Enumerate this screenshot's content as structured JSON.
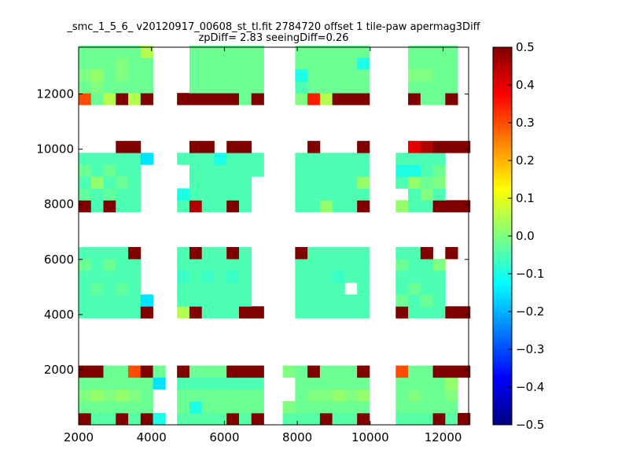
{
  "chart_data": {
    "type": "heatmap",
    "title": "_smc_1_5_6_ v20120917_00608_st_tl.fit 2784720 offset 1 tile-paw apermag3Diff",
    "subtitle": "zpDiff= 2.83 seeingDiff=0.26",
    "xlabel": "",
    "ylabel": "",
    "xlim": [
      2000,
      12700
    ],
    "ylim": [
      0,
      13700
    ],
    "x_ticks": [
      "2000",
      "4000",
      "6000",
      "8000",
      "10000",
      "12000"
    ],
    "y_ticks": [
      "2000",
      "4000",
      "6000",
      "8000",
      "10000",
      "12000"
    ],
    "colorbar": {
      "min": -0.5,
      "max": 0.5,
      "colormap": "jet",
      "ticks": [
        "0.5",
        "0.4",
        "0.3",
        "0.2",
        "0.1",
        "0.0",
        "−0.1",
        "−0.2",
        "−0.3",
        "−0.4",
        "−0.5"
      ]
    },
    "grid": false,
    "cell_width": 340,
    "cell_height": 430,
    "x_bins": [
      2000,
      2340,
      2680,
      3020,
      3360,
      3700,
      4040,
      4700,
      5040,
      5380,
      5720,
      6060,
      6400,
      6740,
      7600,
      7940,
      8280,
      8620,
      8960,
      9300,
      9640,
      10700,
      11040,
      11380,
      11720,
      12060,
      12400
    ],
    "y_bins": [
      0,
      430,
      860,
      1290,
      1720,
      2150,
      3870,
      4300,
      4730,
      5160,
      5590,
      6020,
      7720,
      8150,
      8580,
      9010,
      9440,
      9870,
      10300,
      11610,
      12040,
      12470,
      12900,
      13330
    ],
    "values": [
      [
        0.5,
        -0.04,
        -0.04,
        0.5,
        -0.04,
        0.5,
        -0.1,
        -0.04,
        -0.04,
        -0.04,
        -0.04,
        0.5,
        -0.04,
        0.5,
        -0.04,
        -0.04,
        -0.04,
        0.5,
        -0.04,
        -0.04,
        0.5,
        -0.04,
        -0.04,
        -0.04,
        0.5,
        -0.04,
        0.5
      ],
      [
        -0.02,
        -0.02,
        -0.02,
        -0.02,
        -0.02,
        -0.02,
        null,
        -0.02,
        -0.1,
        -0.02,
        -0.02,
        -0.02,
        -0.02,
        -0.02,
        0.0,
        -0.02,
        -0.02,
        -0.02,
        -0.02,
        -0.02,
        -0.02,
        -0.02,
        -0.02,
        -0.02,
        -0.02,
        -0.02,
        null
      ],
      [
        0.0,
        0.02,
        0.0,
        0.02,
        0.0,
        -0.02,
        null,
        -0.02,
        -0.02,
        -0.02,
        -0.02,
        -0.02,
        -0.02,
        -0.02,
        null,
        -0.02,
        0.0,
        0.0,
        0.02,
        0.0,
        0.02,
        -0.02,
        0.0,
        -0.02,
        -0.02,
        0.0,
        null
      ],
      [
        -0.02,
        -0.02,
        -0.02,
        -0.02,
        -0.02,
        -0.02,
        -0.15,
        -0.05,
        -0.05,
        -0.05,
        -0.05,
        -0.05,
        -0.05,
        -0.05,
        null,
        -0.02,
        -0.02,
        -0.02,
        -0.02,
        -0.02,
        -0.02,
        -0.02,
        -0.02,
        -0.02,
        -0.02,
        0.02,
        null
      ],
      [
        0.5,
        0.5,
        -0.02,
        -0.02,
        0.3,
        0.5,
        -0.02,
        0.5,
        -0.02,
        -0.02,
        -0.02,
        0.5,
        0.5,
        0.5,
        0.0,
        -0.02,
        0.5,
        -0.02,
        -0.02,
        -0.02,
        0.5,
        0.3,
        -0.02,
        -0.02,
        0.5,
        0.5,
        0.5
      ],
      [
        null,
        null,
        null,
        null,
        null,
        null,
        null,
        null,
        null,
        null,
        null,
        null,
        null,
        null,
        null,
        null,
        null,
        null,
        null,
        null,
        null,
        null,
        null,
        null,
        null,
        null,
        null
      ],
      [
        -0.05,
        -0.05,
        -0.05,
        -0.05,
        -0.05,
        0.5,
        null,
        0.05,
        0.5,
        -0.05,
        -0.05,
        -0.05,
        0.5,
        0.5,
        null,
        -0.05,
        -0.05,
        -0.05,
        -0.05,
        -0.05,
        -0.05,
        0.5,
        -0.05,
        -0.05,
        -0.05,
        0.5,
        0.5
      ],
      [
        -0.05,
        -0.05,
        -0.05,
        -0.05,
        -0.05,
        -0.15,
        null,
        -0.05,
        -0.05,
        -0.05,
        -0.05,
        -0.05,
        -0.05,
        null,
        null,
        -0.05,
        -0.05,
        -0.05,
        -0.05,
        -0.05,
        -0.05,
        -0.02,
        -0.05,
        -0.02,
        -0.05,
        null,
        null
      ],
      [
        -0.05,
        -0.03,
        -0.05,
        -0.03,
        -0.05,
        null,
        null,
        -0.05,
        -0.05,
        -0.05,
        -0.05,
        -0.05,
        -0.05,
        null,
        null,
        -0.05,
        -0.05,
        -0.05,
        -0.05,
        null,
        -0.05,
        -0.05,
        -0.02,
        -0.05,
        -0.05,
        null,
        null
      ],
      [
        -0.05,
        -0.05,
        -0.05,
        -0.05,
        -0.05,
        null,
        null,
        -0.07,
        -0.05,
        -0.07,
        -0.05,
        -0.07,
        -0.05,
        null,
        null,
        -0.05,
        -0.05,
        -0.05,
        -0.07,
        -0.05,
        -0.05,
        -0.05,
        -0.05,
        -0.05,
        -0.05,
        null,
        null
      ],
      [
        -0.02,
        -0.05,
        -0.02,
        -0.05,
        -0.05,
        null,
        null,
        -0.05,
        -0.05,
        -0.05,
        -0.05,
        -0.05,
        -0.05,
        null,
        null,
        -0.05,
        -0.05,
        -0.05,
        -0.05,
        -0.05,
        -0.05,
        -0.02,
        -0.05,
        -0.05,
        0.0,
        null,
        null
      ],
      [
        -0.05,
        -0.05,
        -0.05,
        -0.05,
        0.5,
        null,
        null,
        -0.05,
        0.5,
        -0.05,
        -0.05,
        0.5,
        -0.05,
        null,
        null,
        0.5,
        -0.05,
        -0.05,
        -0.05,
        -0.05,
        -0.05,
        -0.05,
        -0.05,
        0.5,
        null,
        0.5,
        null
      ],
      [
        0.5,
        -0.05,
        0.5,
        -0.05,
        -0.05,
        null,
        null,
        -0.05,
        0.45,
        -0.05,
        -0.05,
        0.5,
        -0.05,
        null,
        null,
        -0.05,
        -0.05,
        0.02,
        -0.05,
        -0.05,
        0.5,
        0.02,
        -0.05,
        -0.05,
        0.5,
        0.5,
        0.5
      ],
      [
        -0.03,
        -0.05,
        -0.03,
        -0.05,
        -0.05,
        null,
        null,
        -0.1,
        -0.05,
        -0.05,
        -0.05,
        -0.05,
        -0.05,
        null,
        null,
        -0.05,
        -0.05,
        -0.05,
        -0.05,
        -0.05,
        -0.05,
        null,
        -0.05,
        0.0,
        -0.05,
        null,
        null
      ],
      [
        -0.05,
        0.02,
        -0.05,
        -0.02,
        -0.05,
        null,
        null,
        null,
        -0.05,
        -0.05,
        -0.05,
        -0.05,
        -0.05,
        null,
        null,
        -0.05,
        -0.05,
        -0.05,
        -0.05,
        -0.05,
        0.02,
        -0.05,
        0.02,
        -0.02,
        0.0,
        null,
        null
      ],
      [
        -0.02,
        -0.05,
        -0.02,
        -0.05,
        -0.05,
        null,
        null,
        null,
        -0.05,
        -0.05,
        -0.05,
        -0.05,
        -0.05,
        -0.05,
        null,
        -0.05,
        -0.05,
        -0.05,
        -0.05,
        -0.05,
        -0.05,
        -0.1,
        -0.1,
        -0.05,
        -0.02,
        null,
        null
      ],
      [
        -0.05,
        -0.05,
        -0.05,
        -0.05,
        -0.05,
        -0.15,
        null,
        -0.05,
        -0.05,
        -0.05,
        -0.1,
        -0.05,
        -0.05,
        -0.05,
        null,
        -0.05,
        -0.05,
        -0.05,
        -0.05,
        -0.05,
        -0.05,
        -0.05,
        -0.05,
        -0.05,
        -0.05,
        null,
        null
      ],
      [
        null,
        null,
        null,
        0.5,
        0.5,
        null,
        null,
        null,
        0.5,
        0.5,
        null,
        0.5,
        0.5,
        null,
        null,
        null,
        0.5,
        null,
        null,
        null,
        0.5,
        null,
        0.4,
        0.45,
        0.5,
        0.5,
        0.5
      ],
      [
        null,
        null,
        null,
        null,
        null,
        null,
        null,
        null,
        null,
        null,
        null,
        null,
        null,
        null,
        null,
        null,
        null,
        null,
        null,
        null,
        null,
        null,
        null,
        null,
        null,
        null,
        null
      ],
      [
        0.3,
        -0.02,
        0.05,
        0.5,
        0.05,
        0.5,
        null,
        0.5,
        0.5,
        0.5,
        0.5,
        0.5,
        -0.02,
        0.5,
        null,
        0.0,
        0.35,
        0.05,
        0.5,
        0.5,
        0.5,
        null,
        0.5,
        -0.02,
        -0.02,
        0.5,
        null
      ],
      [
        -0.02,
        0.0,
        -0.02,
        -0.02,
        -0.02,
        -0.02,
        null,
        null,
        -0.02,
        -0.02,
        -0.02,
        -0.02,
        -0.02,
        -0.02,
        null,
        -0.05,
        -0.02,
        -0.02,
        -0.02,
        -0.02,
        -0.02,
        null,
        -0.02,
        -0.02,
        -0.02,
        -0.02,
        null
      ],
      [
        0.0,
        0.02,
        -0.02,
        0.0,
        -0.02,
        -0.02,
        null,
        null,
        -0.02,
        -0.02,
        -0.02,
        -0.02,
        -0.02,
        -0.02,
        null,
        -0.1,
        -0.02,
        -0.02,
        -0.02,
        -0.02,
        -0.02,
        null,
        0.0,
        0.0,
        -0.02,
        -0.02,
        null
      ],
      [
        -0.02,
        -0.02,
        -0.02,
        0.0,
        -0.02,
        -0.02,
        null,
        null,
        -0.02,
        -0.02,
        -0.02,
        -0.02,
        -0.02,
        -0.02,
        null,
        -0.02,
        -0.02,
        -0.02,
        -0.02,
        -0.02,
        -0.1,
        null,
        -0.02,
        -0.02,
        -0.02,
        -0.02,
        null
      ],
      [
        -0.02,
        -0.02,
        -0.02,
        -0.02,
        -0.02,
        0.05,
        null,
        null,
        -0.02,
        -0.02,
        -0.02,
        -0.02,
        -0.02,
        -0.02,
        null,
        -0.02,
        -0.02,
        -0.02,
        -0.02,
        -0.02,
        -0.02,
        null,
        -0.02,
        -0.02,
        -0.02,
        -0.02,
        null
      ]
    ]
  }
}
